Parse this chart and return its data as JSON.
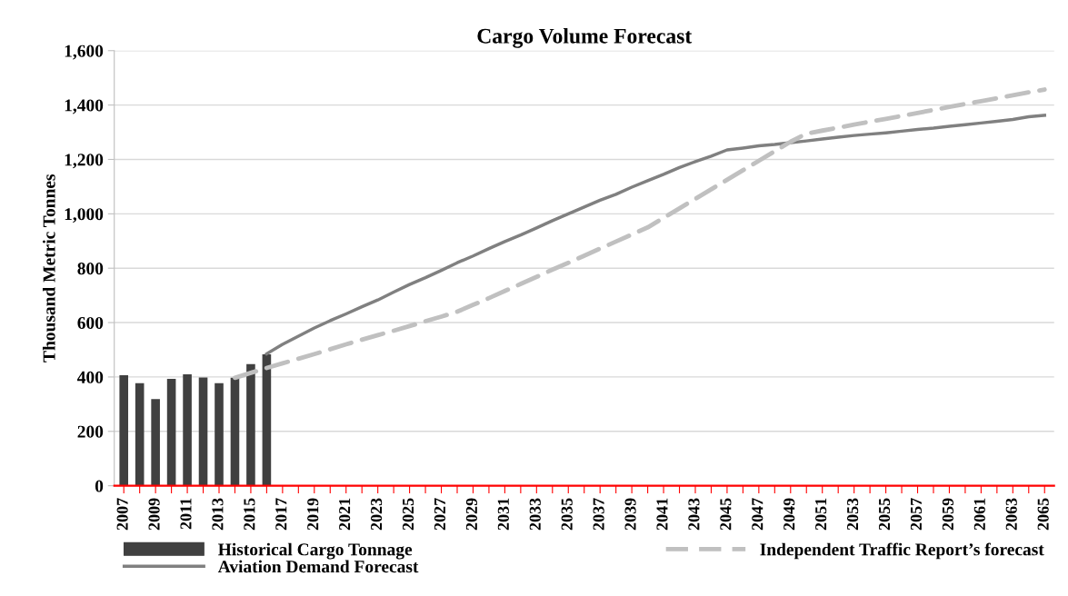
{
  "chart_data": {
    "type": "bar",
    "title": "Cargo Volume Forecast",
    "ylabel": "Thousand Metric Tonnes",
    "categories": [
      "2007",
      null,
      "2009",
      null,
      "2011",
      null,
      "2013",
      null,
      "2015",
      null,
      "2017",
      null,
      "2019",
      null,
      "2021",
      null,
      "2023",
      null,
      "2025",
      null,
      "2027",
      null,
      "2029",
      null,
      "2031",
      null,
      "2033",
      null,
      "2035",
      null,
      "2037",
      null,
      "2039",
      null,
      "2041",
      null,
      "2043",
      null,
      "2045",
      null,
      "2047",
      null,
      "2049",
      null,
      "2051",
      null,
      "2053",
      null,
      "2055",
      null,
      "2057",
      null,
      "2059",
      null,
      "2061",
      null,
      "2063",
      null,
      "2065"
    ],
    "series": [
      {
        "name": "Historical Cargo Tonnage",
        "color": "#404040",
        "values": [
          406,
          377,
          319,
          393,
          410,
          398,
          377,
          397,
          447,
          483,
          null,
          null,
          null,
          null,
          null,
          null,
          null,
          null,
          null,
          null,
          null,
          null,
          null,
          null,
          null,
          null,
          null,
          null,
          null,
          null,
          null,
          null,
          null,
          null,
          null,
          null,
          null,
          null,
          null,
          null,
          null,
          null,
          null,
          null,
          null,
          null,
          null,
          null,
          null,
          null,
          null,
          null,
          null,
          null,
          null,
          null,
          null,
          null,
          null
        ]
      },
      {
        "name": "Aviation Demand Forecast",
        "type": "line",
        "line_style": "solid",
        "color": "#808080",
        "values": [
          null,
          null,
          null,
          null,
          null,
          null,
          null,
          null,
          null,
          485,
          520,
          550,
          580,
          607,
          632,
          658,
          683,
          712,
          740,
          765,
          792,
          820,
          845,
          872,
          898,
          922,
          948,
          975,
          1000,
          1025,
          1050,
          1072,
          1098,
          1122,
          1145,
          1170,
          1192,
          1212,
          1235,
          1242,
          1250,
          1255,
          1262,
          1268,
          1275,
          1282,
          1288,
          1293,
          1298,
          1304,
          1310,
          1315,
          1322,
          1328,
          1334,
          1340,
          1347,
          1357,
          1362
        ]
      },
      {
        "name": "Independent Traffic Report’s forecast",
        "type": "line",
        "line_style": "dashed",
        "color": "#c0c0c0",
        "values": [
          null,
          null,
          null,
          null,
          null,
          null,
          null,
          397,
          415,
          433,
          450,
          467,
          484,
          502,
          520,
          537,
          554,
          570,
          587,
          605,
          622,
          640,
          665,
          690,
          716,
          742,
          768,
          795,
          820,
          846,
          872,
          898,
          924,
          950,
          985,
          1020,
          1055,
          1090,
          1125,
          1160,
          1195,
          1230,
          1265,
          1295,
          1306,
          1317,
          1328,
          1339,
          1349,
          1360,
          1371,
          1382,
          1393,
          1404,
          1414,
          1425,
          1436,
          1447,
          1457
        ]
      }
    ],
    "ylim": [
      0,
      1600
    ],
    "yticks": [
      0,
      200,
      400,
      600,
      800,
      {
        "value": 1000,
        "label": "1,000"
      },
      {
        "value": 1200,
        "label": "1,200"
      },
      {
        "value": 1400,
        "label": "1,400"
      },
      {
        "value": 1600,
        "label": "1,600"
      }
    ],
    "grid": "y",
    "legend": "bottom"
  }
}
